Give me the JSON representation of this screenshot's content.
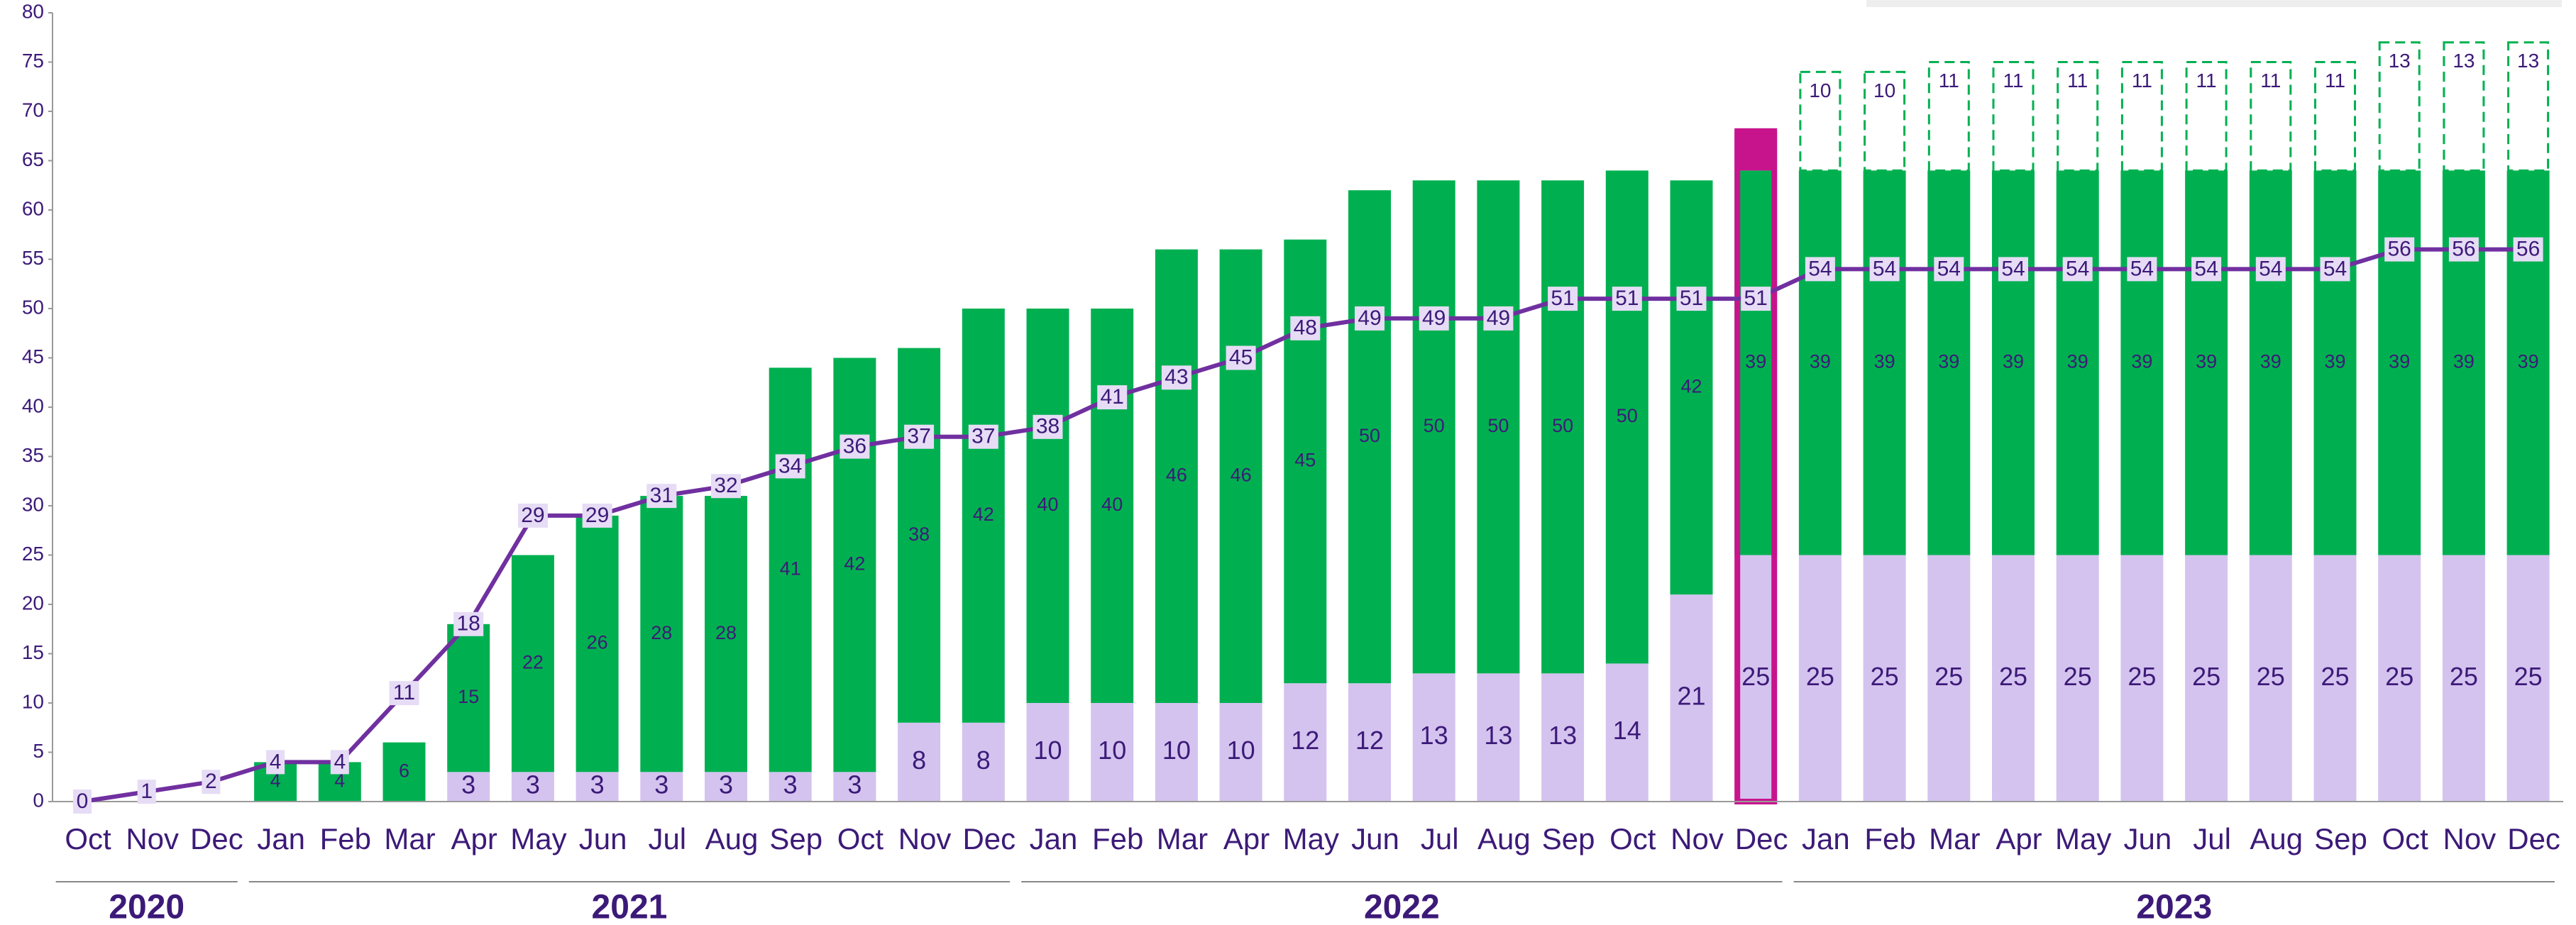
{
  "chart_data": {
    "type": "stacked_bar_line",
    "categories": [
      "Oct",
      "Nov",
      "Dec",
      "Jan",
      "Feb",
      "Mar",
      "Apr",
      "May",
      "Jun",
      "Jul",
      "Aug",
      "Sep",
      "Oct",
      "Nov",
      "Dec",
      "Jan",
      "Feb",
      "Mar",
      "Apr",
      "May",
      "Jun",
      "Jul",
      "Aug",
      "Sep",
      "Oct",
      "Nov",
      "Dec",
      "Jan",
      "Feb",
      "Mar",
      "Apr",
      "May",
      "Jun",
      "Jul",
      "Aug",
      "Sep",
      "Oct",
      "Nov",
      "Dec"
    ],
    "groups": [
      {
        "label": "2020",
        "count": 3
      },
      {
        "label": "2021",
        "count": 12
      },
      {
        "label": "2022",
        "count": 12
      },
      {
        "label": "2023",
        "count": 12
      }
    ],
    "series": [
      {
        "color": "#d4c3ef",
        "style": "solid",
        "label_color": "#3c1a78",
        "values": [
          null,
          null,
          null,
          null,
          null,
          null,
          3,
          3,
          3,
          3,
          3,
          3,
          3,
          8,
          8,
          10,
          10,
          10,
          10,
          12,
          12,
          13,
          13,
          13,
          14,
          21,
          25,
          25,
          25,
          25,
          25,
          25,
          25,
          25,
          25,
          25,
          25,
          25,
          25
        ]
      },
      {
        "color": "#00b050",
        "style": "solid",
        "label_color": "#ffffff",
        "values": [
          null,
          null,
          null,
          4,
          4,
          6,
          15,
          22,
          26,
          28,
          28,
          41,
          42,
          38,
          42,
          40,
          40,
          46,
          46,
          45,
          50,
          50,
          50,
          50,
          50,
          42,
          39,
          39,
          39,
          39,
          39,
          39,
          39,
          39,
          39,
          39,
          39,
          39,
          39
        ]
      },
      {
        "color": "#c8148c",
        "style": "highlight",
        "values": [
          null,
          null,
          null,
          null,
          null,
          null,
          null,
          null,
          null,
          null,
          null,
          null,
          null,
          null,
          null,
          null,
          null,
          null,
          null,
          null,
          null,
          null,
          null,
          null,
          null,
          null,
          4,
          null,
          null,
          null,
          null,
          null,
          null,
          null,
          null,
          null,
          null,
          null,
          null
        ]
      },
      {
        "color": "#00b050",
        "style": "dashed",
        "label_color": "#3c1a78",
        "values": [
          null,
          null,
          null,
          null,
          null,
          null,
          null,
          null,
          null,
          null,
          null,
          null,
          null,
          null,
          null,
          null,
          null,
          null,
          null,
          null,
          null,
          null,
          null,
          null,
          null,
          null,
          null,
          10,
          10,
          11,
          11,
          11,
          11,
          11,
          11,
          11,
          13,
          13,
          13
        ]
      }
    ],
    "line": {
      "color": "#7030a0",
      "values": [
        0,
        1,
        2,
        4,
        4,
        11,
        18,
        29,
        29,
        31,
        32,
        34,
        36,
        37,
        37,
        38,
        41,
        43,
        45,
        48,
        49,
        49,
        49,
        51,
        51,
        51,
        51,
        54,
        54,
        54,
        54,
        54,
        54,
        54,
        54,
        54,
        56,
        56,
        56
      ]
    },
    "highlight_index": 26,
    "ylim": [
      0,
      80
    ],
    "yticks": [
      0,
      5,
      10,
      15,
      20,
      25,
      30,
      35,
      40,
      45,
      50,
      55,
      60,
      65,
      70,
      75,
      80
    ]
  }
}
